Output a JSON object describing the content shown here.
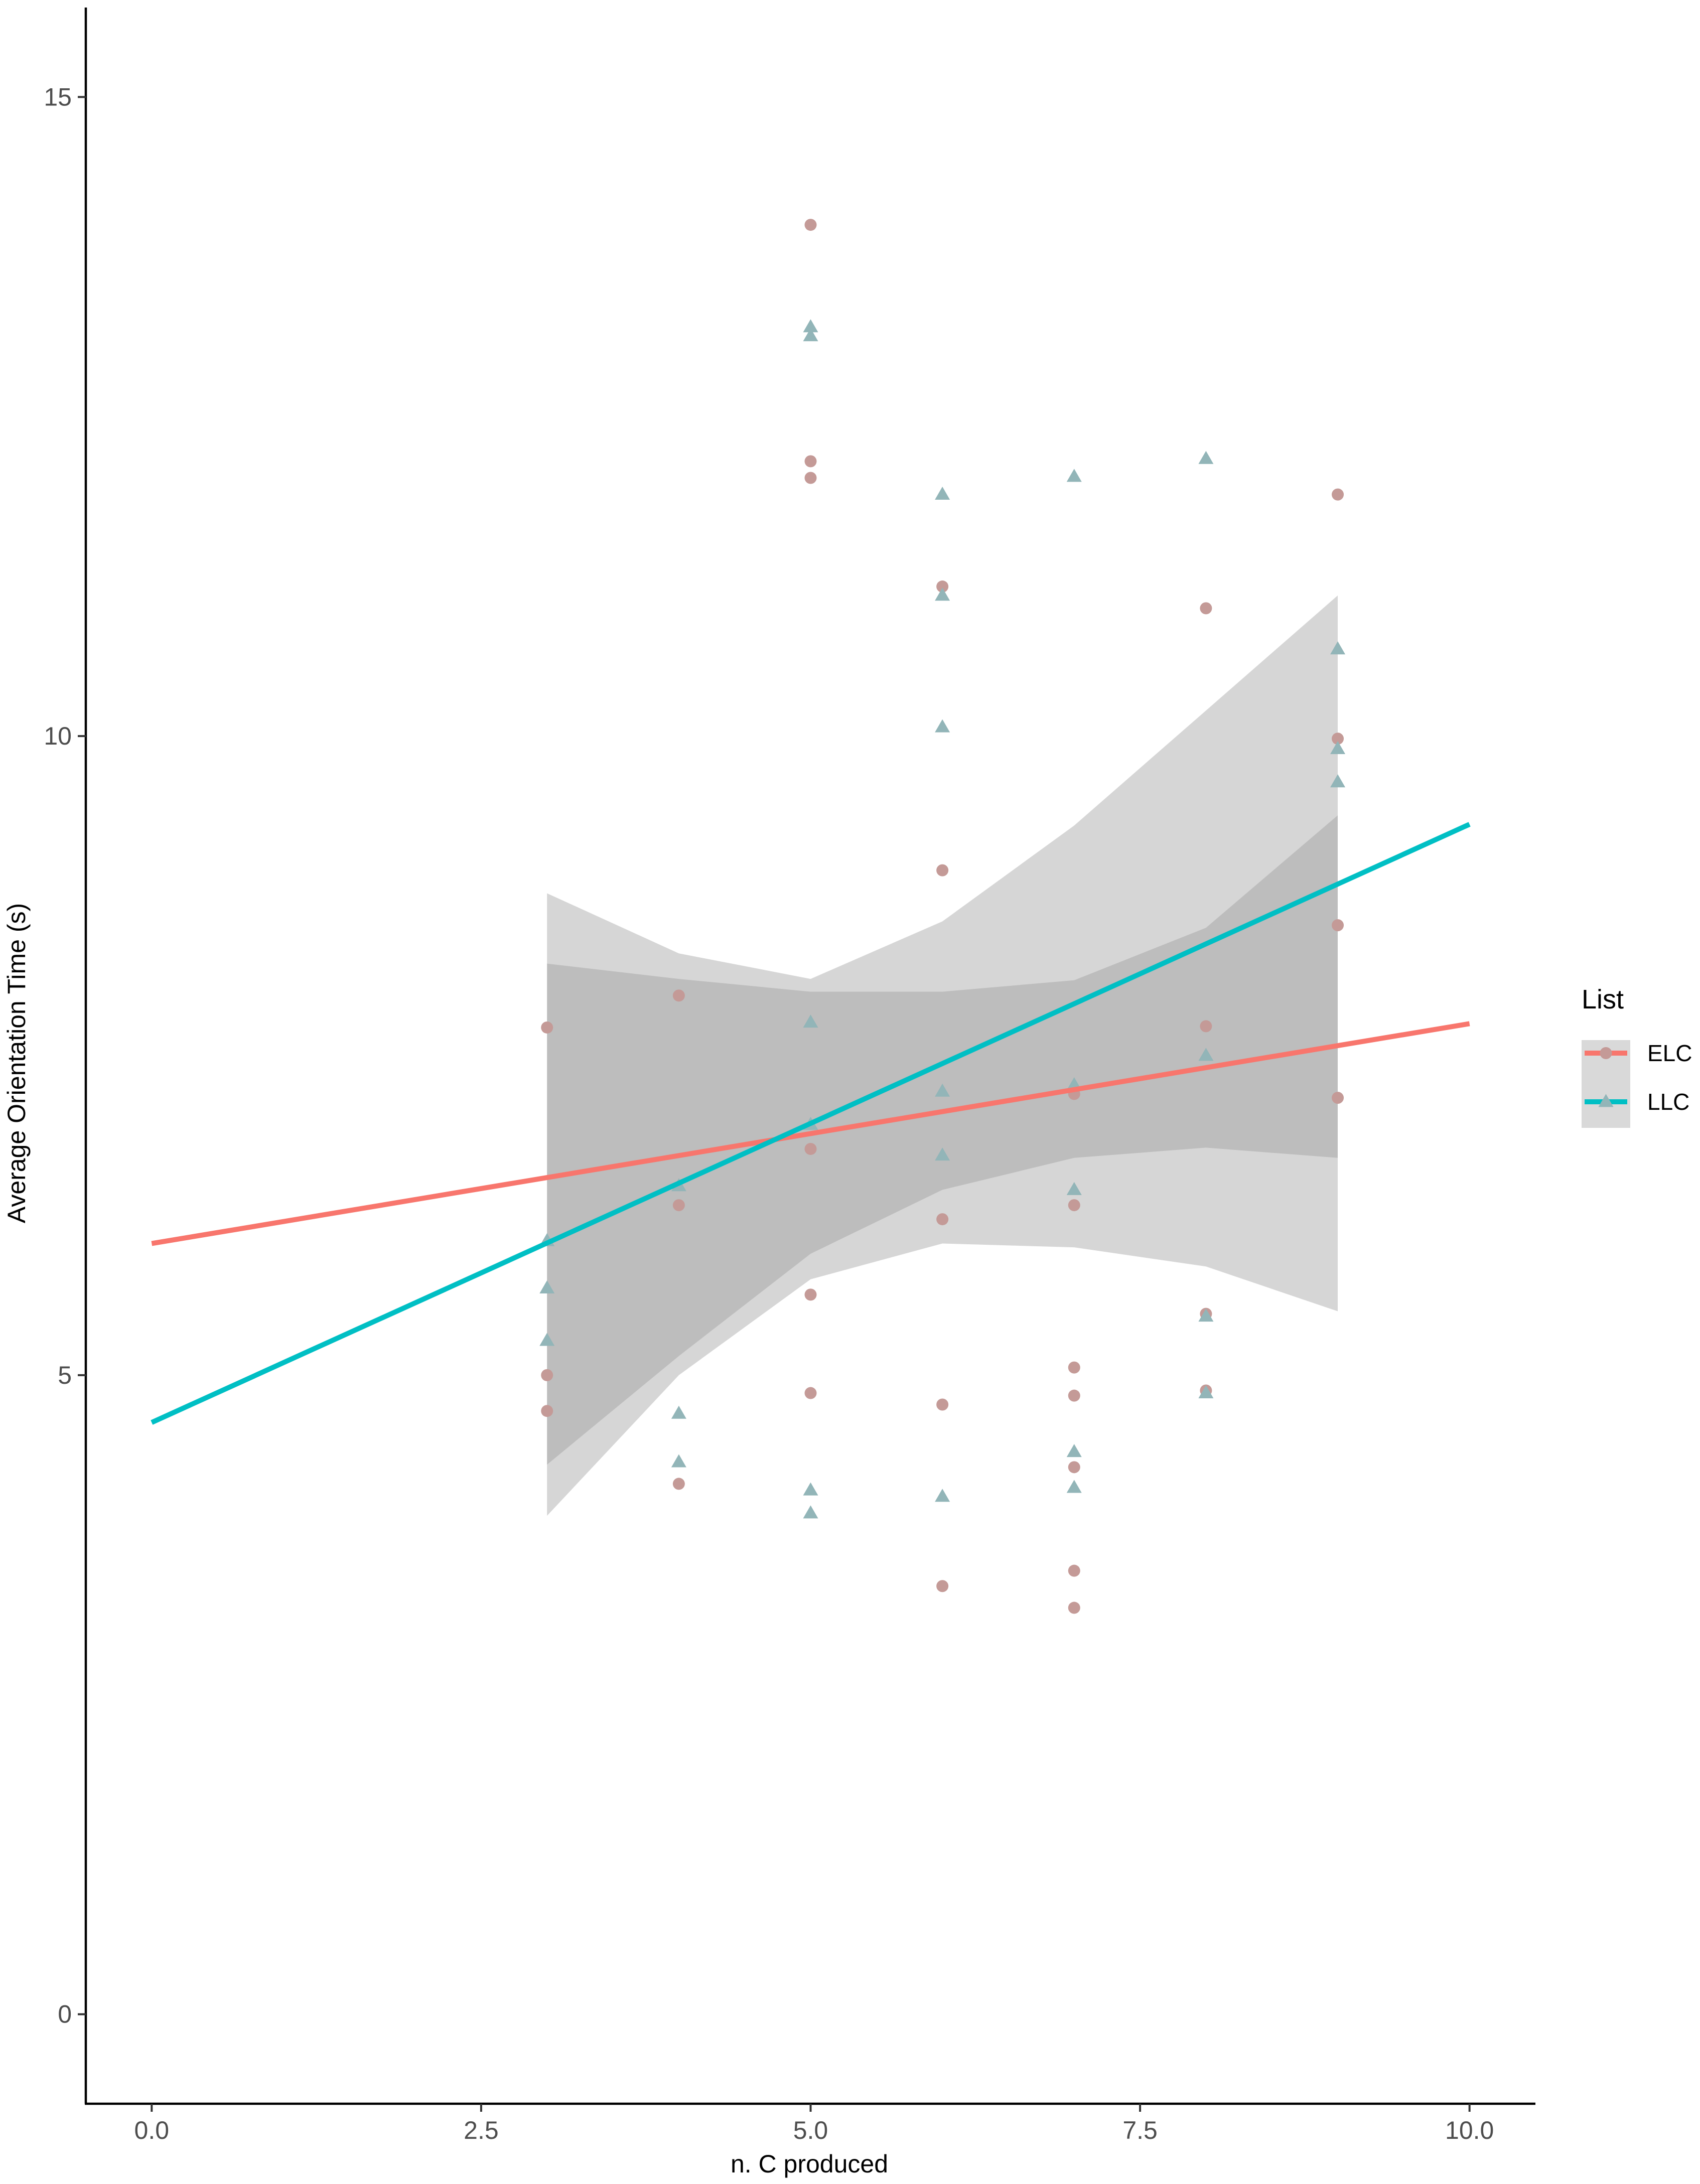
{
  "chart_data": {
    "type": "scatter",
    "title": "",
    "xlabel": "n. C produced",
    "ylabel": "Average Orientation Time (s)",
    "xlim": [
      -0.5,
      10.5
    ],
    "ylim": [
      -0.7,
      15.7
    ],
    "x_ticks": [
      0.0,
      2.5,
      5.0,
      7.5,
      10.0
    ],
    "x_tick_labels": [
      "0.0",
      "2.5",
      "5.0",
      "7.5",
      "10.0"
    ],
    "y_ticks": [
      0,
      5,
      10,
      15
    ],
    "y_tick_labels": [
      "0",
      "5",
      "10",
      "15"
    ],
    "grid": false,
    "legend": {
      "title": "List",
      "placement": "right",
      "entries": [
        "ELC",
        "LLC"
      ]
    },
    "series": [
      {
        "name": "ELC",
        "marker": "circle",
        "color": "#F8766D",
        "point_color": "#C49A97",
        "fit": {
          "slope": 0.172,
          "intercept": 6.03
        },
        "ci_band": {
          "x": [
            3,
            4,
            5,
            6,
            7,
            8,
            9
          ],
          "lower": [
            4.3,
            5.15,
            5.95,
            6.45,
            6.7,
            6.78,
            6.7
          ],
          "upper": [
            8.22,
            8.1,
            8.0,
            8.0,
            8.09,
            8.5,
            9.38
          ]
        },
        "points": [
          {
            "x": 3,
            "y": 7.72
          },
          {
            "x": 3,
            "y": 5.0
          },
          {
            "x": 3,
            "y": 4.72
          },
          {
            "x": 4,
            "y": 7.97
          },
          {
            "x": 4,
            "y": 6.33
          },
          {
            "x": 4,
            "y": 4.15
          },
          {
            "x": 5,
            "y": 14.0
          },
          {
            "x": 5,
            "y": 12.15
          },
          {
            "x": 5,
            "y": 12.02
          },
          {
            "x": 5,
            "y": 6.77
          },
          {
            "x": 5,
            "y": 5.63
          },
          {
            "x": 5,
            "y": 4.86
          },
          {
            "x": 6,
            "y": 11.17
          },
          {
            "x": 6,
            "y": 8.95
          },
          {
            "x": 6,
            "y": 6.22
          },
          {
            "x": 6,
            "y": 4.77
          },
          {
            "x": 6,
            "y": 3.35
          },
          {
            "x": 7,
            "y": 7.2
          },
          {
            "x": 7,
            "y": 6.33
          },
          {
            "x": 7,
            "y": 5.06
          },
          {
            "x": 7,
            "y": 4.84
          },
          {
            "x": 7,
            "y": 4.28
          },
          {
            "x": 7,
            "y": 3.47
          },
          {
            "x": 7,
            "y": 3.18
          },
          {
            "x": 8,
            "y": 11.0
          },
          {
            "x": 8,
            "y": 7.73
          },
          {
            "x": 8,
            "y": 5.48
          },
          {
            "x": 8,
            "y": 4.88
          },
          {
            "x": 9,
            "y": 11.89
          },
          {
            "x": 9,
            "y": 9.98
          },
          {
            "x": 9,
            "y": 8.52
          },
          {
            "x": 9,
            "y": 7.17
          }
        ]
      },
      {
        "name": "LLC",
        "marker": "triangle",
        "color": "#00BFC4",
        "point_color": "#92B5B8",
        "fit": {
          "slope": 0.468,
          "intercept": 4.63
        },
        "ci_band": {
          "x": [
            3,
            4,
            5,
            6,
            7,
            8,
            9
          ],
          "lower": [
            3.9,
            5.0,
            5.75,
            6.03,
            6.0,
            5.85,
            5.5
          ],
          "upper": [
            8.77,
            8.3,
            8.1,
            8.55,
            9.3,
            10.2,
            11.1
          ]
        },
        "points": [
          {
            "x": 3,
            "y": 6.05
          },
          {
            "x": 3,
            "y": 5.68
          },
          {
            "x": 3,
            "y": 5.27
          },
          {
            "x": 4,
            "y": 6.48
          },
          {
            "x": 4,
            "y": 4.7
          },
          {
            "x": 4,
            "y": 4.32
          },
          {
            "x": 5,
            "y": 13.2
          },
          {
            "x": 5,
            "y": 13.13
          },
          {
            "x": 5,
            "y": 7.76
          },
          {
            "x": 5,
            "y": 6.96
          },
          {
            "x": 5,
            "y": 4.1
          },
          {
            "x": 5,
            "y": 3.92
          },
          {
            "x": 6,
            "y": 11.89
          },
          {
            "x": 6,
            "y": 11.1
          },
          {
            "x": 6,
            "y": 10.07
          },
          {
            "x": 6,
            "y": 7.22
          },
          {
            "x": 6,
            "y": 6.72
          },
          {
            "x": 6,
            "y": 4.05
          },
          {
            "x": 7,
            "y": 12.03
          },
          {
            "x": 7,
            "y": 7.27
          },
          {
            "x": 7,
            "y": 6.45
          },
          {
            "x": 7,
            "y": 4.4
          },
          {
            "x": 7,
            "y": 4.12
          },
          {
            "x": 8,
            "y": 12.17
          },
          {
            "x": 8,
            "y": 7.5
          },
          {
            "x": 8,
            "y": 5.46
          },
          {
            "x": 8,
            "y": 4.86
          },
          {
            "x": 9,
            "y": 10.68
          },
          {
            "x": 9,
            "y": 9.9
          },
          {
            "x": 9,
            "y": 9.64
          }
        ]
      }
    ]
  }
}
